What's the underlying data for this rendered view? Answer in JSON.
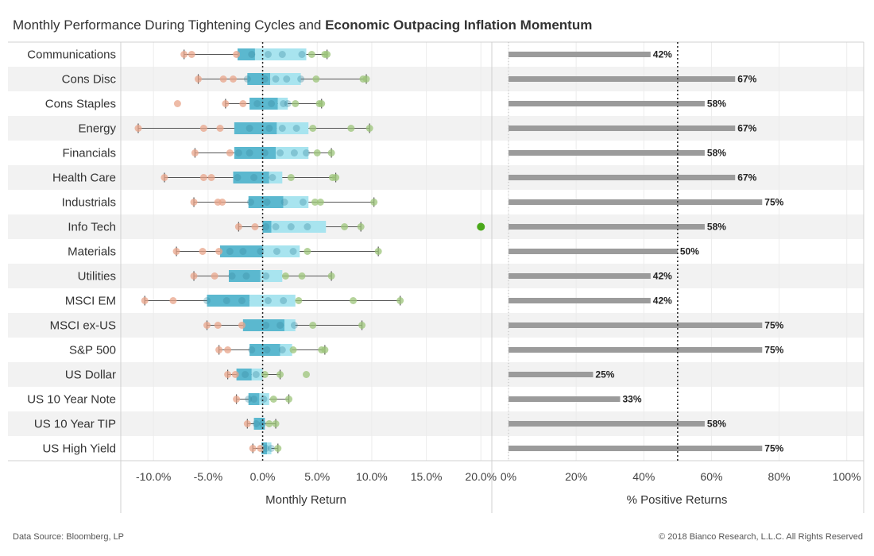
{
  "title": {
    "part1": "Monthly Performance During Tightening Cycles and ",
    "part2": "Economic Outpacing Inflation Momentum"
  },
  "footer": {
    "source": "Data Source: Bloomberg, LP",
    "copyright": "© 2018 Bianco Research, L.L.C. All Rights Reserved"
  },
  "colors": {
    "box_below_median": "#5bb8cf",
    "box_above_median": "#a8e4ef",
    "point_negative": "#e8a48a",
    "point_positive": "#9cc47a",
    "outlier": "#4aa81a",
    "bar": "#9b9b9b",
    "band": "#f2f2f2"
  },
  "chart_data": [
    {
      "type": "box",
      "xlabel": "Monthly Return",
      "ylabel": "",
      "xlim": [
        -13.0,
        21.0
      ],
      "x_ticks": [
        -10,
        -5,
        0,
        5,
        10,
        15,
        20
      ],
      "x_tick_labels": [
        "-10.0%",
        "-5.0%",
        "0.0%",
        "5.0%",
        "10.0%",
        "15.0%",
        "20.0%"
      ],
      "reference_line": 0,
      "categories": [
        "Communications",
        "Cons Disc",
        "Cons Staples",
        "Energy",
        "Financials",
        "Health Care",
        "Industrials",
        "Info Tech",
        "Materials",
        "Utilities",
        "MSCI EM",
        "MSCI ex-US",
        "S&P 500",
        "US Dollar",
        "US 10 Year Note",
        "US 10 Year TIP",
        "US High Yield"
      ],
      "series": [
        {
          "min": -7.2,
          "q1": -2.3,
          "median": -0.7,
          "q3": 4.0,
          "max": 5.9,
          "points": [
            -7.2,
            -6.5,
            -2.4,
            -1.0,
            0.5,
            1.8,
            3.6,
            4.5,
            5.7,
            5.9
          ]
        },
        {
          "min": -5.9,
          "q1": -1.4,
          "median": 0.7,
          "q3": 3.5,
          "max": 9.5,
          "points": [
            -5.9,
            -3.6,
            -2.7,
            -1.4,
            0.2,
            1.2,
            2.2,
            3.5,
            4.9,
            9.2,
            9.5
          ]
        },
        {
          "min": -3.4,
          "q1": -1.2,
          "median": 1.4,
          "q3": 2.3,
          "max": 5.4,
          "points": [
            -7.8,
            -3.4,
            -1.8,
            -0.5,
            0.8,
            1.9,
            2.3,
            3.0,
            5.2,
            5.4
          ]
        },
        {
          "min": -11.4,
          "q1": -2.6,
          "median": 1.3,
          "q3": 4.2,
          "max": 9.8,
          "points": [
            -11.4,
            -5.4,
            -3.9,
            -1.2,
            0.6,
            1.8,
            3.1,
            4.6,
            8.1,
            9.8
          ]
        },
        {
          "min": -6.2,
          "q1": -2.6,
          "median": 1.2,
          "q3": 4.2,
          "max": 6.3,
          "points": [
            -6.2,
            -3.0,
            -2.2,
            -1.2,
            0.2,
            1.6,
            2.9,
            4.0,
            5.0,
            6.3
          ]
        },
        {
          "min": -9.0,
          "q1": -2.7,
          "median": 0.6,
          "q3": 1.8,
          "max": 6.7,
          "points": [
            -9.0,
            -5.4,
            -4.7,
            -2.3,
            -0.8,
            0.9,
            2.6,
            6.4,
            6.7
          ]
        },
        {
          "min": -6.3,
          "q1": -1.3,
          "median": 1.9,
          "q3": 4.2,
          "max": 10.2,
          "points": [
            -6.3,
            -4.1,
            -3.7,
            -1.1,
            0.4,
            2.0,
            3.7,
            4.8,
            5.3,
            10.2
          ]
        },
        {
          "min": -2.2,
          "q1": 0.0,
          "median": 0.8,
          "q3": 5.8,
          "max": 9.0,
          "points": [
            -2.2,
            -0.7,
            0.3,
            1.2,
            2.6,
            4.1,
            7.5,
            9.0
          ],
          "outliers": [
            20.0
          ]
        },
        {
          "min": -7.9,
          "q1": -3.9,
          "median": 0.0,
          "q3": 3.4,
          "max": 10.6,
          "points": [
            -7.9,
            -5.5,
            -4.0,
            -3.0,
            -1.8,
            -0.2,
            1.3,
            2.8,
            4.1,
            10.6
          ]
        },
        {
          "min": -6.3,
          "q1": -3.1,
          "median": -0.2,
          "q3": 1.8,
          "max": 6.3,
          "points": [
            -6.3,
            -4.4,
            -2.8,
            -1.5,
            0.3,
            2.1,
            3.6,
            6.3
          ]
        },
        {
          "min": -10.8,
          "q1": -5.1,
          "median": -1.2,
          "q3": 3.0,
          "max": 12.6,
          "points": [
            -10.8,
            -8.2,
            -5.1,
            -3.3,
            -1.9,
            0.5,
            1.9,
            3.3,
            8.3,
            12.6
          ]
        },
        {
          "min": -5.1,
          "q1": -1.8,
          "median": 2.0,
          "q3": 3.0,
          "max": 9.1,
          "points": [
            -5.1,
            -4.1,
            -1.9,
            0.3,
            1.6,
            2.9,
            4.6,
            9.1
          ]
        },
        {
          "min": -4.0,
          "q1": -1.2,
          "median": 1.6,
          "q3": 2.7,
          "max": 5.7,
          "points": [
            -4.0,
            -3.2,
            -1.0,
            0.4,
            1.8,
            2.8,
            5.4,
            5.7
          ]
        },
        {
          "min": -3.2,
          "q1": -2.4,
          "median": -1.0,
          "q3": 0.0,
          "max": 1.6,
          "points": [
            -3.2,
            -2.5,
            -1.6,
            -0.6,
            0.2,
            1.6,
            4.0
          ]
        },
        {
          "min": -2.4,
          "q1": -1.3,
          "median": -0.3,
          "q3": 0.6,
          "max": 2.4,
          "points": [
            -2.4,
            -1.3,
            -0.8,
            0.1,
            1.0,
            2.4
          ]
        },
        {
          "min": -1.4,
          "q1": -0.8,
          "median": 0.2,
          "q3": 0.2,
          "max": 1.2,
          "points": [
            -1.4,
            -0.6,
            0.0,
            0.6,
            1.2
          ]
        },
        {
          "min": -0.9,
          "q1": -0.1,
          "median": 0.4,
          "q3": 0.8,
          "max": 1.4,
          "points": [
            -0.9,
            -0.2,
            0.3,
            0.8,
            1.4
          ]
        }
      ]
    },
    {
      "type": "bar",
      "xlabel": "% Positive Returns",
      "ylabel": "",
      "xlim": [
        0,
        105
      ],
      "x_ticks": [
        0,
        20,
        40,
        60,
        80,
        100
      ],
      "x_tick_labels": [
        "0%",
        "20%",
        "40%",
        "60%",
        "80%",
        "100%"
      ],
      "reference_line": 50,
      "categories": [
        "Communications",
        "Cons Disc",
        "Cons Staples",
        "Energy",
        "Financials",
        "Health Care",
        "Industrials",
        "Info Tech",
        "Materials",
        "Utilities",
        "MSCI EM",
        "MSCI ex-US",
        "S&P 500",
        "US Dollar",
        "US 10 Year Note",
        "US 10 Year TIP",
        "US High Yield"
      ],
      "values": [
        42,
        67,
        58,
        67,
        58,
        67,
        75,
        58,
        50,
        42,
        42,
        75,
        75,
        25,
        33,
        58,
        75
      ],
      "data_labels": [
        "42%",
        "67%",
        "58%",
        "67%",
        "58%",
        "67%",
        "75%",
        "58%",
        "50%",
        "42%",
        "42%",
        "75%",
        "75%",
        "25%",
        "33%",
        "58%",
        "75%"
      ]
    }
  ]
}
